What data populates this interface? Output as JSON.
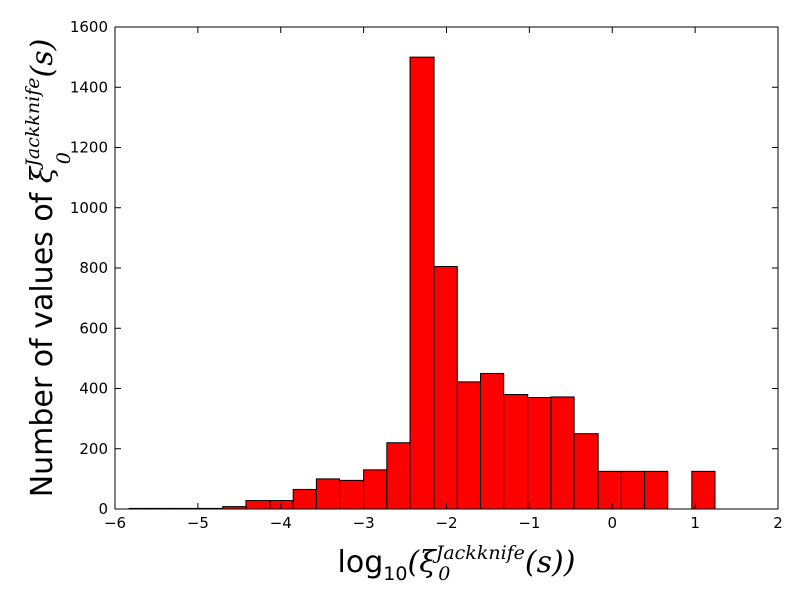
{
  "chart_data": {
    "type": "bar",
    "title": "",
    "xlabel": {
      "prefix": "log",
      "subscript": "10",
      "open": "(",
      "symbol": "ξ",
      "symbol_sub": "0",
      "symbol_sup": "Jackknife",
      "argument": "(s)",
      "close": ")"
    },
    "ylabel": {
      "prefix": "Number of values of ",
      "symbol": "ξ",
      "symbol_sub": "0",
      "symbol_sup": "Jackknife",
      "argument": "(s)"
    },
    "xlim": [
      -6,
      2
    ],
    "ylim": [
      0,
      1600
    ],
    "xticks": [
      -6,
      -5,
      -4,
      -3,
      -2,
      -1,
      0,
      1,
      2
    ],
    "xtick_labels": [
      "−6",
      "−5",
      "−4",
      "−3",
      "−2",
      "−1",
      "0",
      "1",
      "2"
    ],
    "yticks": [
      0,
      200,
      400,
      600,
      800,
      1000,
      1200,
      1400,
      1600
    ],
    "ytick_labels": [
      "0",
      "200",
      "400",
      "600",
      "800",
      "1000",
      "1200",
      "1400",
      "1600"
    ],
    "bar_color": "#ff0000",
    "edge_color": "#000000",
    "bin_edges": [
      -5.83,
      -5.55,
      -5.27,
      -4.98,
      -4.7,
      -4.42,
      -4.13,
      -3.85,
      -3.57,
      -3.29,
      -3.0,
      -2.72,
      -2.44,
      -2.15,
      -1.87,
      -1.59,
      -1.31,
      -1.02,
      -0.74,
      -0.46,
      -0.17,
      0.11,
      0.39,
      0.67,
      0.96,
      1.24
    ],
    "values": [
      2,
      2,
      2,
      2,
      8,
      28,
      28,
      65,
      100,
      95,
      130,
      220,
      1500,
      805,
      422,
      450,
      380,
      370,
      372,
      250,
      125,
      125,
      125,
      0,
      125
    ]
  }
}
